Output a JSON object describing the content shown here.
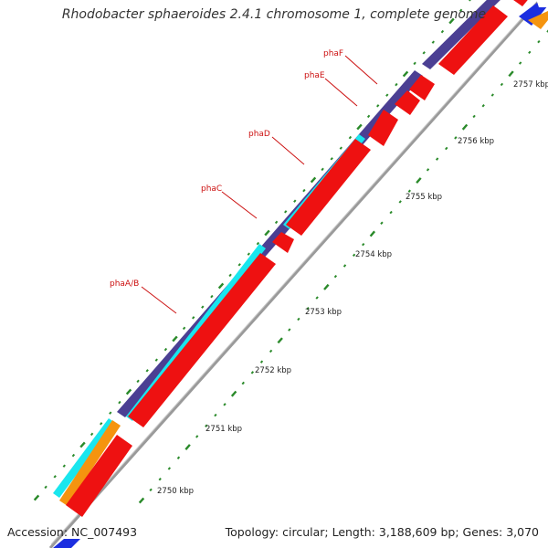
{
  "title": "Rhodobacter sphaeroides 2.4.1 chromosome 1, complete genome",
  "accession": "Accession: NC_007493",
  "summary": "Topology: circular; Length: 3,188,609 bp; Genes: 3,070",
  "colors": {
    "backbone": "#9a9a9a",
    "gene_forward": "#ee1111",
    "cds_band": "#4b3f93",
    "cyan_band": "#19e6ee",
    "orange_band": "#f5940f",
    "blue_band": "#1b2ee0",
    "tick": "#2a8a2a",
    "gene_label": "#cc1111"
  },
  "scale_labels": [
    "2750 kbp",
    "2751 kbp",
    "2752 kbp",
    "2753 kbp",
    "2754 kbp",
    "2755 kbp",
    "2756 kbp",
    "2757 kbp"
  ],
  "gene_labels": [
    "phaA/B",
    "phaC",
    "phaD",
    "phaE",
    "phaF"
  ]
}
